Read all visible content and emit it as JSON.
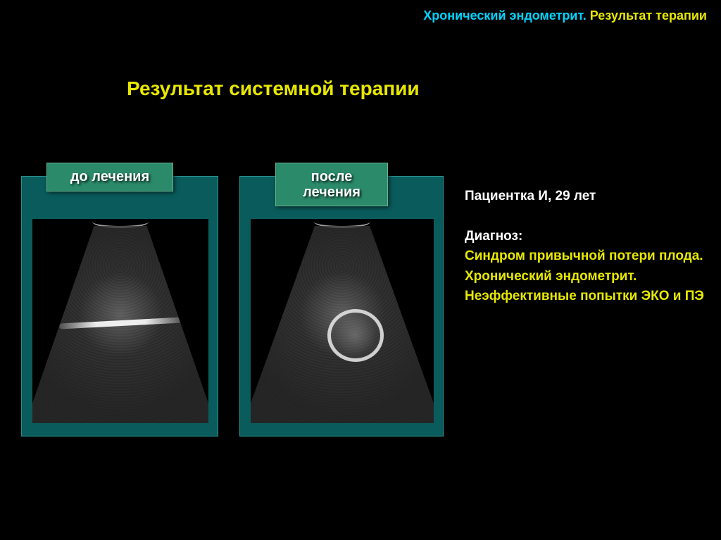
{
  "header": {
    "part1": "Хронический эндометрит.",
    "part2": "Результат терапии"
  },
  "subtitle": "Результат системной терапии",
  "panels": {
    "before": {
      "label": "до лечения"
    },
    "after": {
      "label": "после лечения"
    }
  },
  "patient": {
    "intro": "Пациентка И, 29 лет",
    "diagnosis_label": "Диагноз:",
    "diagnosis_text": "Синдром привычной потери плода. Хронический эндометрит. Неэффективные попытки ЭКО и ПЭ"
  },
  "colors": {
    "background": "#000000",
    "cyan": "#00d4ff",
    "yellow": "#e8e800",
    "white": "#ffffff",
    "panel_bg": "#0a5c5c",
    "label_bg": "#2a8a6a"
  }
}
